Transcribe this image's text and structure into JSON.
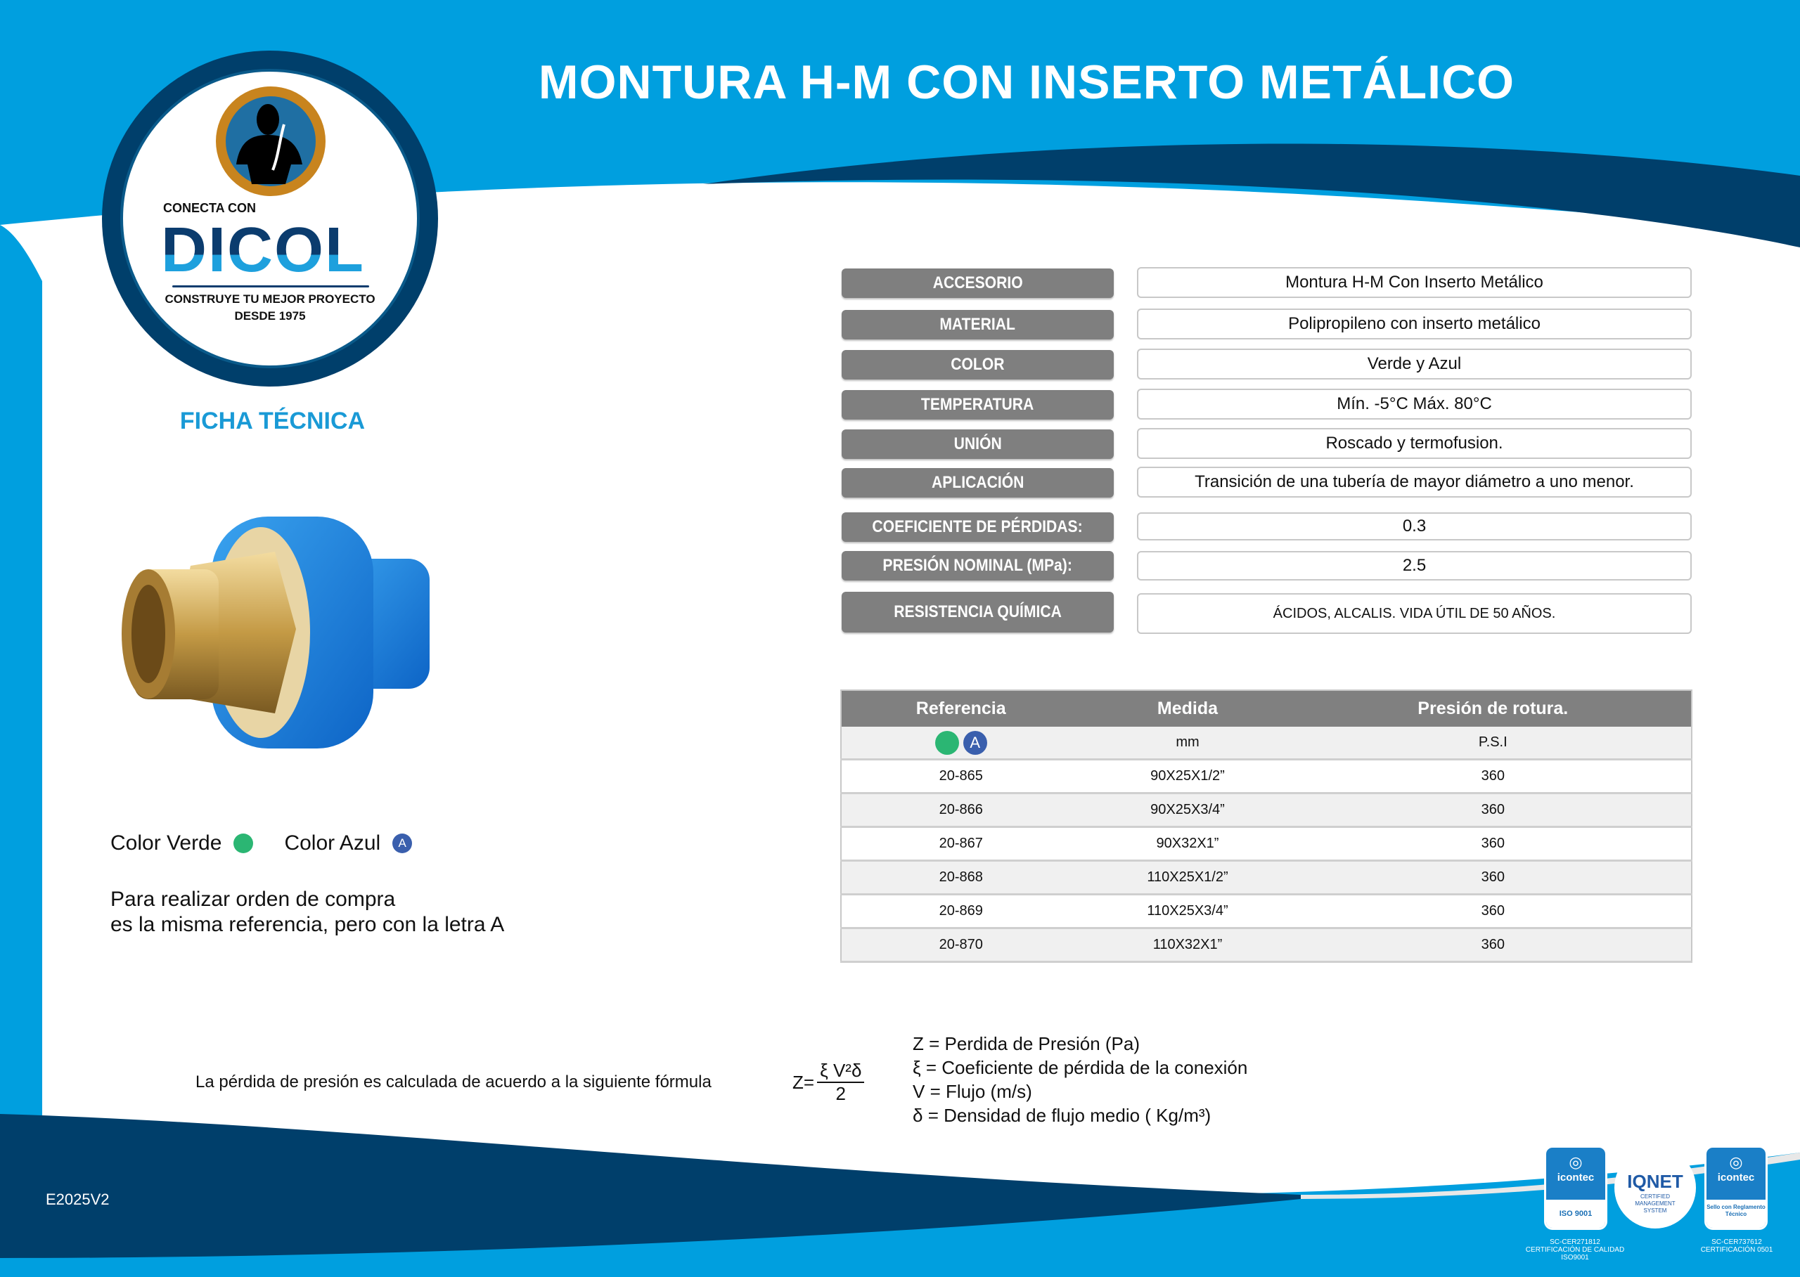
{
  "header": {
    "title": "MONTURA H-M CON INSERTO METÁLICO"
  },
  "logo": {
    "tagline_top": "CONECTA CON",
    "brand": "DICOL",
    "tagline_bottom": "CONSTRUYE TU MEJOR PROYECTO",
    "since": "DESDE 1975"
  },
  "section_title": "FICHA TÉCNICA",
  "specs": [
    {
      "label": "ACCESORIO",
      "value": "Montura H-M   Con Inserto Metálico"
    },
    {
      "label": "MATERIAL",
      "value": "Polipropileno con inserto metálico"
    },
    {
      "label": "COLOR",
      "value": "Verde y Azul"
    },
    {
      "label": "TEMPERATURA",
      "value": "Mín. -5°C Máx. 80°C"
    },
    {
      "label": "UNIÓN",
      "value": "Roscado y termofusion."
    },
    {
      "label": "APLICACIÓN",
      "value": "Transición de una tubería de mayor diámetro a uno menor."
    },
    {
      "label": "COEFICIENTE DE PÉRDIDAS:",
      "value": "0.3"
    },
    {
      "label": "PRESIÓN NOMINAL (MPa):",
      "value": "2.5"
    },
    {
      "label": "RESISTENCIA QUÍMICA",
      "value": "ÁCIDOS, ALCALIS. VIDA ÚTIL DE 50 AÑOS."
    }
  ],
  "ref_table": {
    "headers": [
      "Referencia",
      "Medida",
      "Presión de rotura."
    ],
    "units": {
      "badge_letter": "A",
      "medida": "mm",
      "presion": "P.S.I"
    },
    "rows": [
      {
        "ref": "20-865",
        "medida": "90X25X1/2”",
        "presion": "360"
      },
      {
        "ref": "20-866",
        "medida": "90X25X3/4”",
        "presion": "360"
      },
      {
        "ref": "20-867",
        "medida": "90X32X1”",
        "presion": "360"
      },
      {
        "ref": "20-868",
        "medida": "110X25X1/2”",
        "presion": "360"
      },
      {
        "ref": "20-869",
        "medida": "110X25X3/4”",
        "presion": "360"
      },
      {
        "ref": "20-870",
        "medida": "110X32X1”",
        "presion": "360"
      }
    ]
  },
  "colors_legend": {
    "green_label": "Color Verde",
    "blue_label": "Color Azul",
    "blue_letter": "A",
    "green": "#2bb673",
    "blue": "#3a5fad"
  },
  "order_note": {
    "line1": "Para realizar orden de compra",
    "line2": "es la misma referencia, pero con la letra A"
  },
  "formula": {
    "intro": "La pérdida de presión es calculada de acuerdo a la siguiente fórmula",
    "lhs": "Z=",
    "numerator": "ξ V²δ",
    "denominator": "2",
    "vars": [
      "Z =  Perdida de Presión (Pa)",
      "ξ = Coeficiente de pérdida de la conexión",
      "V = Flujo (m/s)",
      "δ = Densidad de flujo medio ( Kg/m³)"
    ]
  },
  "doc_code": "E2025V2",
  "certifications": [
    {
      "brand": "icontec",
      "label": "ISO 9001",
      "caption": [
        "SC-CER271812",
        "CERTIFICACIÓN DE CALIDAD",
        "ISO9001"
      ]
    },
    {
      "brand": "IQNET",
      "label": "CERTIFIED MANAGEMENT SYSTEM"
    },
    {
      "brand": "icontec",
      "label": "Sello con Reglamento Técnico",
      "caption": [
        "SC-CER737612",
        "CERTIFICACIÓN 0501"
      ]
    }
  ],
  "theme": {
    "blue": "#009fdf",
    "navy": "#003f6b",
    "gray": "#7f7f7f"
  }
}
